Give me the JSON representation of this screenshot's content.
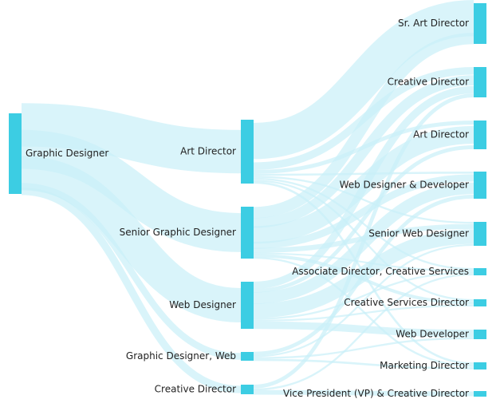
{
  "chart_data": {
    "type": "sankey",
    "colors": {
      "node": "#3ccde3",
      "link": "#c9f0f8"
    },
    "nodes": [
      {
        "id": "gd",
        "label": "Graphic Designer",
        "column": 0
      },
      {
        "id": "ad1",
        "label": "Art Director",
        "column": 1
      },
      {
        "id": "sgd",
        "label": "Senior Graphic Designer",
        "column": 1
      },
      {
        "id": "wd",
        "label": "Web Designer",
        "column": 1
      },
      {
        "id": "gdw",
        "label": "Graphic Designer, Web",
        "column": 1
      },
      {
        "id": "cd1",
        "label": "Creative Director",
        "column": 1
      },
      {
        "id": "sad",
        "label": "Sr. Art Director",
        "column": 2
      },
      {
        "id": "cd2",
        "label": "Creative Director",
        "column": 2
      },
      {
        "id": "ad2",
        "label": "Art Director",
        "column": 2
      },
      {
        "id": "wdd",
        "label": "Web Designer & Developer",
        "column": 2
      },
      {
        "id": "swd",
        "label": "Senior Web Designer",
        "column": 2
      },
      {
        "id": "adcs",
        "label": "Associate Director, Creative Services",
        "column": 2
      },
      {
        "id": "csd",
        "label": "Creative Services Director",
        "column": 2
      },
      {
        "id": "wdev",
        "label": "Web Developer",
        "column": 2
      },
      {
        "id": "md",
        "label": "Marketing Director",
        "column": 2
      },
      {
        "id": "vp",
        "label": "Vice President (VP) & Creative Director",
        "column": 2
      }
    ],
    "links": [
      {
        "source": "gd",
        "target": "ad1",
        "value": 30
      },
      {
        "source": "gd",
        "target": "sgd",
        "value": 34
      },
      {
        "source": "gd",
        "target": "wd",
        "value": 28
      },
      {
        "source": "gd",
        "target": "gdw",
        "value": 6
      },
      {
        "source": "gd",
        "target": "cd1",
        "value": 7
      },
      {
        "source": "ad1",
        "target": "sad",
        "value": 22
      },
      {
        "source": "ad1",
        "target": "cd2",
        "value": 4
      },
      {
        "source": "ad1",
        "target": "ad2",
        "value": 2
      },
      {
        "source": "ad1",
        "target": "wdd",
        "value": 1
      },
      {
        "source": "ad1",
        "target": "swd",
        "value": 1
      },
      {
        "source": "ad1",
        "target": "adcs",
        "value": 1
      },
      {
        "source": "ad1",
        "target": "csd",
        "value": 1
      },
      {
        "source": "ad1",
        "target": "md",
        "value": 1
      },
      {
        "source": "sgd",
        "target": "sad",
        "value": 8
      },
      {
        "source": "sgd",
        "target": "cd2",
        "value": 6
      },
      {
        "source": "sgd",
        "target": "ad2",
        "value": 10
      },
      {
        "source": "sgd",
        "target": "wdd",
        "value": 4
      },
      {
        "source": "sgd",
        "target": "swd",
        "value": 3
      },
      {
        "source": "sgd",
        "target": "adcs",
        "value": 1
      },
      {
        "source": "sgd",
        "target": "csd",
        "value": 2
      },
      {
        "source": "sgd",
        "target": "md",
        "value": 1
      },
      {
        "source": "wd",
        "target": "cd2",
        "value": 4
      },
      {
        "source": "wd",
        "target": "ad2",
        "value": 2
      },
      {
        "source": "wd",
        "target": "wdd",
        "value": 6
      },
      {
        "source": "wd",
        "target": "swd",
        "value": 8
      },
      {
        "source": "wd",
        "target": "adcs",
        "value": 1
      },
      {
        "source": "wd",
        "target": "csd",
        "value": 1
      },
      {
        "source": "wd",
        "target": "wdev",
        "value": 4
      },
      {
        "source": "gdw",
        "target": "wdd",
        "value": 2
      },
      {
        "source": "gdw",
        "target": "swd",
        "value": 1
      },
      {
        "source": "gdw",
        "target": "wdev",
        "value": 1
      },
      {
        "source": "gdw",
        "target": "md",
        "value": 1
      },
      {
        "source": "cd1",
        "target": "cd2",
        "value": 2
      },
      {
        "source": "cd1",
        "target": "adcs",
        "value": 1
      },
      {
        "source": "cd1",
        "target": "vp",
        "value": 2
      }
    ]
  }
}
